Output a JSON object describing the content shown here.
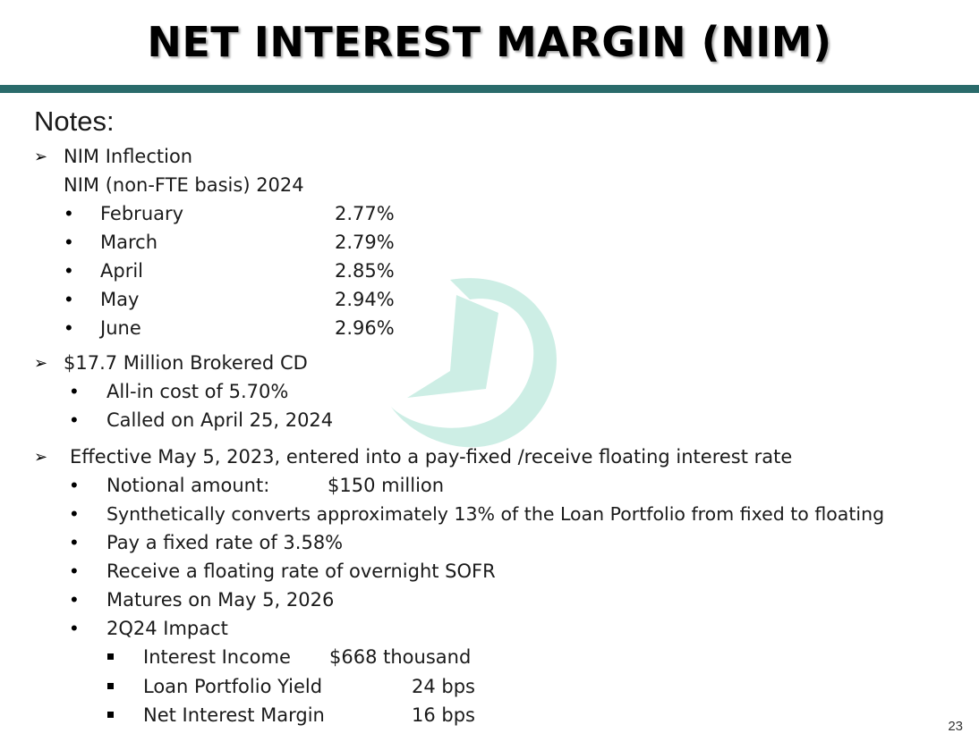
{
  "title": "NET INTEREST MARGIN (NIM)",
  "notes_label": "Notes:",
  "colors": {
    "rule": "#2a6b6b",
    "watermark": "#cdeee5"
  },
  "watermark_icon": "circular-arrow-icon",
  "section1": {
    "heading": "NIM Inflection",
    "subheading": "NIM (non-FTE basis) 2024",
    "months": [
      {
        "label": "February",
        "value": "2.77%"
      },
      {
        "label": "March",
        "value": "2.79%"
      },
      {
        "label": "April",
        "value": "2.85%"
      },
      {
        "label": "May",
        "value": "2.94%"
      },
      {
        "label": "June",
        "value": "2.96%"
      }
    ]
  },
  "section2": {
    "heading": "$17.7 Million Brokered CD",
    "items": [
      "All-in cost of 5.70%",
      "Called on April 25, 2024"
    ]
  },
  "section3": {
    "heading": "Effective May 5, 2023, entered into a  pay-fixed /receive floating interest rate",
    "notional_label": "Notional amount:",
    "notional_value": "$150 million",
    "items": [
      "Synthetically converts approximately 13% of the Loan Portfolio from fixed to floating",
      "Pay a fixed rate of 3.58%",
      "Receive a floating rate of overnight SOFR",
      "Matures on May 5, 2026",
      "2Q24 Impact"
    ],
    "impact": [
      {
        "label": "Interest Income",
        "value": "$668 thousand"
      },
      {
        "label": "Loan Portfolio Yield",
        "value": "24 bps"
      },
      {
        "label": "Net Interest Margin",
        "value": "16 bps"
      }
    ]
  },
  "page_number": "23"
}
